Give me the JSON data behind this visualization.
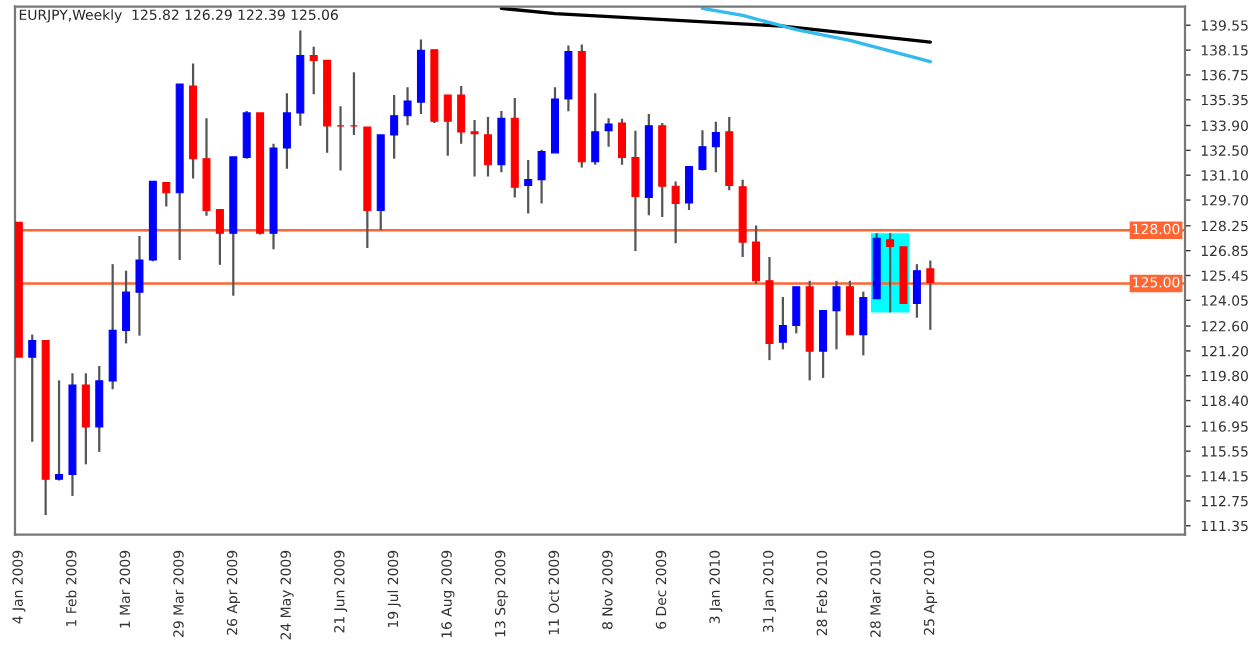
{
  "chart_data": {
    "type": "candlestick",
    "title": "EURJPY,Weekly  125.82 126.29 122.39 125.06",
    "x": [
      "2009-01-04",
      "2009-01-11",
      "2009-01-18",
      "2009-01-25",
      "2009-02-01",
      "2009-02-08",
      "2009-02-15",
      "2009-02-22",
      "2009-03-01",
      "2009-03-08",
      "2009-03-15",
      "2009-03-22",
      "2009-03-29",
      "2009-04-05",
      "2009-04-12",
      "2009-04-19",
      "2009-04-26",
      "2009-05-03",
      "2009-05-10",
      "2009-05-17",
      "2009-05-24",
      "2009-05-31",
      "2009-06-07",
      "2009-06-14",
      "2009-06-21",
      "2009-06-28",
      "2009-07-05",
      "2009-07-12",
      "2009-07-19",
      "2009-07-26",
      "2009-08-02",
      "2009-08-09",
      "2009-08-16",
      "2009-08-23",
      "2009-08-30",
      "2009-09-06",
      "2009-09-13",
      "2009-09-20",
      "2009-09-27",
      "2009-10-04",
      "2009-10-11",
      "2009-10-18",
      "2009-10-25",
      "2009-11-01",
      "2009-11-08",
      "2009-11-15",
      "2009-11-22",
      "2009-11-29",
      "2009-12-06",
      "2009-12-13",
      "2009-12-20",
      "2009-12-27",
      "2010-01-03",
      "2010-01-10",
      "2010-01-17",
      "2010-01-24",
      "2010-01-31",
      "2010-02-07",
      "2010-02-14",
      "2010-02-21",
      "2010-02-28",
      "2010-03-07",
      "2010-03-14",
      "2010-03-21",
      "2010-03-28",
      "2010-04-04",
      "2010-04-11",
      "2010-04-18",
      "2010-04-25"
    ],
    "ohlc": [
      [
        128.44,
        128.44,
        120.85,
        120.85
      ],
      [
        120.85,
        122.12,
        116.08,
        121.79
      ],
      [
        121.79,
        121.79,
        111.95,
        113.97
      ],
      [
        113.97,
        119.54,
        113.9,
        114.24
      ],
      [
        114.24,
        119.94,
        113.03,
        119.27
      ],
      [
        119.27,
        119.94,
        114.81,
        116.92
      ],
      [
        116.92,
        120.35,
        115.51,
        119.51
      ],
      [
        119.51,
        126.09,
        119.04,
        122.36
      ],
      [
        122.36,
        125.72,
        121.62,
        124.51
      ],
      [
        124.51,
        127.67,
        122.06,
        126.32
      ],
      [
        126.32,
        130.75,
        126.25,
        130.75
      ],
      [
        130.69,
        130.69,
        129.34,
        130.11
      ],
      [
        130.11,
        136.23,
        126.32,
        136.23
      ],
      [
        136.12,
        137.4,
        130.92,
        132.03
      ],
      [
        132.03,
        134.31,
        128.81,
        129.11
      ],
      [
        129.17,
        129.17,
        126.05,
        127.83
      ],
      [
        127.83,
        132.13,
        124.31,
        132.13
      ],
      [
        132.1,
        134.72,
        132.03,
        134.61
      ],
      [
        134.61,
        134.61,
        127.76,
        127.83
      ],
      [
        127.83,
        132.87,
        126.93,
        132.63
      ],
      [
        132.63,
        135.72,
        131.46,
        134.61
      ],
      [
        134.61,
        139.25,
        133.88,
        137.84
      ],
      [
        137.84,
        138.34,
        135.66,
        137.57
      ],
      [
        137.57,
        137.57,
        132.36,
        133.88
      ],
      [
        133.88,
        134.98,
        131.36,
        133.88
      ],
      [
        133.88,
        136.9,
        133.37,
        133.88
      ],
      [
        133.81,
        133.81,
        127.0,
        129.11
      ],
      [
        129.11,
        133.37,
        128.0,
        133.37
      ],
      [
        133.37,
        135.62,
        132.03,
        134.45
      ],
      [
        134.45,
        136.06,
        133.91,
        135.28
      ],
      [
        135.22,
        138.74,
        134.55,
        138.14
      ],
      [
        138.17,
        138.17,
        134.04,
        134.14
      ],
      [
        135.62,
        135.62,
        132.2,
        134.14
      ],
      [
        135.62,
        136.12,
        132.87,
        133.54
      ],
      [
        133.54,
        134.21,
        131.02,
        133.44
      ],
      [
        133.37,
        134.38,
        131.02,
        131.69
      ],
      [
        131.69,
        134.72,
        131.26,
        134.31
      ],
      [
        134.31,
        135.45,
        129.85,
        130.42
      ],
      [
        130.52,
        131.96,
        128.94,
        130.85
      ],
      [
        130.85,
        132.53,
        129.51,
        132.43
      ],
      [
        132.36,
        136.06,
        132.36,
        135.39
      ],
      [
        135.39,
        138.41,
        134.71,
        138.07
      ],
      [
        138.07,
        138.47,
        131.53,
        131.86
      ],
      [
        131.86,
        135.72,
        131.69,
        133.54
      ],
      [
        133.61,
        134.31,
        132.7,
        133.98
      ],
      [
        134.04,
        134.28,
        131.69,
        132.1
      ],
      [
        132.1,
        133.61,
        126.83,
        129.91
      ],
      [
        129.85,
        134.55,
        128.84,
        133.88
      ],
      [
        133.88,
        134.04,
        128.74,
        130.48
      ],
      [
        130.48,
        130.75,
        127.26,
        129.51
      ],
      [
        129.54,
        131.59,
        129.14,
        131.59
      ],
      [
        131.42,
        133.64,
        131.36,
        132.7
      ],
      [
        132.7,
        134.11,
        131.26,
        133.51
      ],
      [
        133.54,
        134.38,
        130.25,
        130.52
      ],
      [
        130.45,
        130.85,
        126.49,
        127.33
      ],
      [
        127.33,
        128.27,
        124.98,
        125.15
      ],
      [
        125.15,
        126.49,
        120.68,
        121.62
      ],
      [
        121.69,
        124.24,
        121.29,
        122.63
      ],
      [
        122.63,
        124.81,
        122.19,
        124.81
      ],
      [
        124.81,
        125.15,
        119.54,
        121.19
      ],
      [
        121.19,
        123.47,
        119.68,
        123.47
      ],
      [
        123.47,
        125.15,
        121.29,
        124.81
      ],
      [
        124.81,
        125.15,
        122.12,
        122.12
      ],
      [
        122.12,
        124.54,
        120.95,
        124.21
      ],
      [
        124.14,
        127.83,
        124.14,
        127.55
      ],
      [
        127.46,
        127.83,
        123.37,
        127.09
      ],
      [
        127.06,
        127.06,
        123.87,
        123.87
      ],
      [
        123.87,
        126.09,
        123.07,
        125.72
      ],
      [
        125.82,
        126.29,
        122.39,
        125.06
      ]
    ],
    "colors": [
      "#ff0000",
      "#0000ff",
      "#ff0000",
      "#0000ff",
      "#0000ff",
      "#ff0000",
      "#0000ff",
      "#0000ff",
      "#0000ff",
      "#0000ff",
      "#0000ff",
      "#ff0000",
      "#0000ff",
      "#ff0000",
      "#ff0000",
      "#ff0000",
      "#0000ff",
      "#0000ff",
      "#ff0000",
      "#0000ff",
      "#0000ff",
      "#0000ff",
      "#ff0000",
      "#ff0000",
      "#ff0000",
      "#ff0000",
      "#ff0000",
      "#0000ff",
      "#0000ff",
      "#0000ff",
      "#0000ff",
      "#ff0000",
      "#ff0000",
      "#ff0000",
      "#ff0000",
      "#ff0000",
      "#0000ff",
      "#ff0000",
      "#0000ff",
      "#0000ff",
      "#0000ff",
      "#0000ff",
      "#ff0000",
      "#0000ff",
      "#0000ff",
      "#ff0000",
      "#ff0000",
      "#0000ff",
      "#ff0000",
      "#ff0000",
      "#0000ff",
      "#0000ff",
      "#0000ff",
      "#ff0000",
      "#ff0000",
      "#ff0000",
      "#ff0000",
      "#0000ff",
      "#0000ff",
      "#ff0000",
      "#0000ff",
      "#0000ff",
      "#ff0000",
      "#0000ff",
      "#0000ff",
      "#ff0000",
      "#ff0000",
      "#0000ff",
      "#ff0000"
    ],
    "series": [
      {
        "type": "line",
        "color": "#000000",
        "x": [
          "2009-09-13",
          "2009-10-11",
          "2010-02-07",
          "2010-04-25"
        ],
        "values": [
          140.5,
          140.2,
          139.5,
          138.6
        ]
      },
      {
        "type": "line",
        "color": "#33bbee",
        "x": [
          "2009-12-27",
          "2010-01-17",
          "2010-02-14",
          "2010-03-14",
          "2010-04-25"
        ],
        "values": [
          140.5,
          140.1,
          139.3,
          138.7,
          137.5
        ]
      }
    ],
    "xlim": [
      "2009-01-02",
      "2010-09-05"
    ],
    "xticks": [
      {
        "value": "2009-01-04",
        "label": "4 Jan 2009"
      },
      {
        "value": "2009-02-01",
        "label": "1 Feb 2009"
      },
      {
        "value": "2009-03-01",
        "label": "1 Mar 2009"
      },
      {
        "value": "2009-03-29",
        "label": "29 Mar 2009"
      },
      {
        "value": "2009-04-26",
        "label": "26 Apr 2009"
      },
      {
        "value": "2009-05-24",
        "label": "24 May 2009"
      },
      {
        "value": "2009-06-21",
        "label": "21 Jun 2009"
      },
      {
        "value": "2009-07-19",
        "label": "19 Jul 2009"
      },
      {
        "value": "2009-08-16",
        "label": "16 Aug 2009"
      },
      {
        "value": "2009-09-13",
        "label": "13 Sep 2009"
      },
      {
        "value": "2009-10-11",
        "label": "11 Oct 2009"
      },
      {
        "value": "2009-11-08",
        "label": "8 Nov 2009"
      },
      {
        "value": "2009-12-06",
        "label": "6 Dec 2009"
      },
      {
        "value": "2010-01-03",
        "label": "3 Jan 2010"
      },
      {
        "value": "2010-01-31",
        "label": "31 Jan 2010"
      },
      {
        "value": "2010-02-28",
        "label": "28 Feb 2010"
      },
      {
        "value": "2010-03-28",
        "label": "28 Mar 2010"
      },
      {
        "value": "2010-04-25",
        "label": "25 Apr 2010"
      }
    ],
    "ylim": [
      110.85,
      140.6
    ],
    "yticks": [
      111.35,
      112.75,
      114.15,
      115.55,
      116.95,
      {
        "value": 118.4,
        "label": "118.40"
      },
      {
        "value": 119.8,
        "label": "119.80"
      },
      {
        "value": 121.2,
        "label": "121.20"
      },
      {
        "value": 122.6,
        "label": "122.60"
      },
      124.05,
      125.45,
      126.85,
      128.25,
      {
        "value": 129.7,
        "label": "129.70"
      },
      {
        "value": 131.1,
        "label": "131.10"
      },
      {
        "value": 132.5,
        "label": "132.50"
      },
      {
        "value": 133.9,
        "label": "133.90"
      },
      135.35,
      136.75,
      138.15,
      139.55
    ],
    "ref_lines": [
      {
        "axis": "y",
        "value": 128.0,
        "label": "128.00",
        "color": "#ff6633"
      },
      {
        "axis": "y",
        "value": 125.0,
        "label": "125.00",
        "color": "#ff6633"
      }
    ],
    "bands": [
      {
        "axis": "x",
        "from": "2010-03-25",
        "to": "2010-04-14",
        "color": "#00ffff"
      }
    ],
    "grid": false
  }
}
